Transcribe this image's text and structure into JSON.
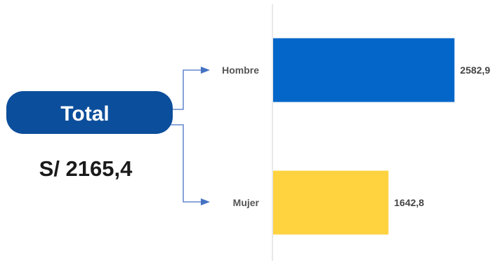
{
  "summary": {
    "label": "Total",
    "value_text": "S/ 2165,4",
    "pill_color": "#0B4E9B"
  },
  "chart_data": {
    "type": "bar",
    "orientation": "horizontal",
    "categories": [
      "Hombre",
      "Mujer"
    ],
    "values": [
      2582.9,
      1642.8
    ],
    "value_labels": [
      "2582,9",
      "1642,8"
    ],
    "colors": [
      "#0466C8",
      "#FFD23F"
    ],
    "xlim": [
      0,
      2900
    ],
    "grid": false,
    "legend": "none"
  },
  "colors": {
    "connector": "#4472C4",
    "baseline": "#D9D9D9"
  }
}
